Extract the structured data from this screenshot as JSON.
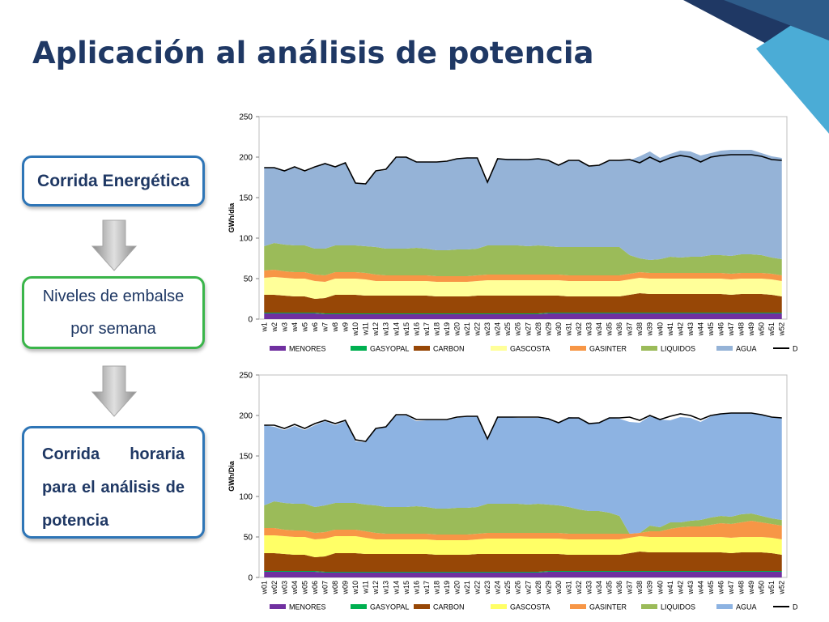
{
  "page": {
    "title": "Aplicación al análisis de potencia"
  },
  "flow": {
    "step1": "Corrida Energética",
    "step2": "Niveles de embalse por semana",
    "step3": "Corrida horaria para el análisis de potencia"
  },
  "colors": {
    "title": "#1f3864",
    "box_blue": "#2e75b6",
    "box_green": "#3ab54a",
    "arrow": "#a6a6a6",
    "corner_dark": "#1f3864",
    "corner_light": "#4bacd6"
  },
  "chart_data": [
    {
      "type": "area",
      "stacked": true,
      "ylabel": "GWh/dia",
      "ylim": [
        0,
        250
      ],
      "yticks": [
        0,
        50,
        100,
        150,
        200,
        250
      ],
      "grid": false,
      "legend_position": "bottom",
      "x": [
        "w1",
        "w2",
        "w3",
        "w4",
        "w5",
        "w6",
        "w7",
        "w8",
        "w9",
        "w10",
        "w11",
        "w12",
        "w13",
        "w14",
        "w15",
        "w16",
        "w17",
        "w18",
        "w19",
        "w20",
        "w21",
        "w22",
        "w23",
        "w24",
        "w25",
        "w26",
        "w27",
        "w28",
        "w29",
        "w30",
        "w31",
        "w32",
        "w33",
        "w34",
        "w35",
        "w36",
        "w37",
        "w38",
        "w39",
        "w40",
        "w41",
        "w42",
        "w43",
        "w44",
        "w45",
        "w46",
        "w47",
        "w48",
        "w49",
        "w50",
        "w51",
        "w52"
      ],
      "series": [
        {
          "name": "MENORES",
          "color": "#7030a0",
          "values": [
            7,
            7,
            7,
            7,
            7,
            7,
            6,
            6,
            6,
            6,
            6,
            6,
            6,
            6,
            6,
            6,
            6,
            6,
            6,
            6,
            6,
            6,
            6,
            6,
            6,
            6,
            6,
            6,
            7,
            7,
            7,
            7,
            7,
            7,
            7,
            7,
            7,
            7,
            7,
            7,
            7,
            7,
            7,
            7,
            7,
            7,
            7,
            7,
            7,
            7,
            7,
            7
          ]
        },
        {
          "name": "GASYOPAL",
          "color": "#00b050",
          "values": [
            1,
            1,
            1,
            1,
            1,
            1,
            1,
            1,
            1,
            1,
            1,
            1,
            1,
            1,
            1,
            1,
            1,
            1,
            1,
            1,
            1,
            1,
            1,
            1,
            1,
            1,
            1,
            1,
            1,
            1,
            1,
            1,
            1,
            1,
            1,
            1,
            1,
            1,
            1,
            1,
            1,
            1,
            1,
            1,
            1,
            1,
            1,
            1,
            1,
            1,
            1,
            1
          ]
        },
        {
          "name": "CARBON",
          "color": "#974706",
          "values": [
            22,
            22,
            21,
            20,
            20,
            17,
            19,
            23,
            23,
            23,
            22,
            22,
            22,
            22,
            22,
            22,
            22,
            21,
            21,
            21,
            21,
            22,
            22,
            22,
            22,
            22,
            22,
            22,
            21,
            21,
            20,
            20,
            20,
            20,
            20,
            20,
            22,
            24,
            23,
            23,
            23,
            23,
            23,
            23,
            23,
            23,
            22,
            23,
            23,
            23,
            22,
            20
          ]
        },
        {
          "name": "GASCOSTA",
          "color": "#ffff99",
          "values": [
            21,
            22,
            22,
            22,
            22,
            22,
            20,
            20,
            20,
            20,
            20,
            18,
            18,
            18,
            18,
            18,
            18,
            18,
            18,
            18,
            18,
            18,
            19,
            19,
            19,
            19,
            19,
            19,
            19,
            19,
            19,
            19,
            19,
            19,
            19,
            19,
            19,
            19,
            19,
            19,
            19,
            19,
            19,
            19,
            19,
            19,
            19,
            19,
            19,
            19,
            19,
            19
          ]
        },
        {
          "name": "GASINTER",
          "color": "#f79646",
          "values": [
            9,
            9,
            8,
            8,
            8,
            8,
            8,
            8,
            8,
            8,
            8,
            8,
            7,
            7,
            7,
            7,
            7,
            7,
            7,
            7,
            7,
            7,
            7,
            7,
            7,
            7,
            7,
            7,
            7,
            7,
            7,
            7,
            7,
            7,
            7,
            7,
            7,
            7,
            7,
            7,
            7,
            7,
            7,
            7,
            7,
            7,
            7,
            7,
            7,
            7,
            7,
            7
          ]
        },
        {
          "name": "LIQUIDOS",
          "color": "#9bbb59",
          "values": [
            30,
            33,
            33,
            33,
            33,
            32,
            33,
            33,
            33,
            33,
            33,
            34,
            33,
            33,
            33,
            34,
            33,
            32,
            32,
            33,
            33,
            33,
            36,
            36,
            36,
            36,
            35,
            36,
            35,
            34,
            35,
            35,
            35,
            35,
            35,
            35,
            23,
            17,
            16,
            17,
            20,
            19,
            20,
            20,
            22,
            22,
            22,
            23,
            23,
            22,
            20,
            20
          ]
        },
        {
          "name": "AGUA",
          "color": "#95b3d7",
          "values": [
            97,
            93,
            91,
            96,
            91,
            100,
            106,
            96,
            103,
            77,
            76,
            93,
            97,
            112,
            113,
            106,
            107,
            109,
            110,
            112,
            113,
            112,
            78,
            107,
            107,
            107,
            107,
            107,
            105,
            101,
            107,
            107,
            99,
            101,
            107,
            107,
            117,
            126,
            134,
            125,
            127,
            132,
            130,
            125,
            126,
            129,
            131,
            129,
            129,
            126,
            125,
            125
          ]
        },
        {
          "name": "DEMANDA",
          "color": "#000000",
          "kind": "line",
          "values": [
            187,
            187,
            183,
            188,
            183,
            188,
            192,
            188,
            193,
            168,
            167,
            183,
            185,
            200,
            200,
            194,
            194,
            194,
            195,
            198,
            199,
            199,
            169,
            198,
            197,
            197,
            197,
            198,
            196,
            190,
            196,
            196,
            189,
            190,
            196,
            196,
            197,
            193,
            200,
            194,
            199,
            202,
            200,
            194,
            200,
            202,
            203,
            203,
            203,
            201,
            197,
            196
          ]
        }
      ]
    },
    {
      "type": "area",
      "stacked": true,
      "ylabel": "GWh/Dia",
      "ylim": [
        0,
        250
      ],
      "yticks": [
        0,
        50,
        100,
        150,
        200,
        250
      ],
      "grid": false,
      "legend_position": "bottom",
      "x": [
        "w01",
        "w02",
        "w03",
        "w04",
        "w05",
        "w06",
        "w07",
        "w08",
        "w09",
        "w10",
        "w11",
        "w12",
        "w13",
        "w14",
        "w15",
        "w16",
        "w17",
        "w18",
        "w19",
        "w20",
        "w21",
        "w22",
        "w23",
        "w24",
        "w25",
        "w26",
        "w27",
        "w28",
        "w29",
        "w30",
        "w31",
        "w32",
        "w33",
        "w34",
        "w35",
        "w36",
        "w37",
        "w38",
        "w39",
        "w40",
        "w41",
        "w42",
        "w43",
        "w44",
        "w45",
        "w46",
        "w47",
        "w48",
        "w49",
        "w50",
        "w51",
        "w52"
      ],
      "series": [
        {
          "name": "MENORES",
          "color": "#7030a0",
          "values": [
            7,
            7,
            7,
            7,
            7,
            7,
            6,
            6,
            6,
            6,
            6,
            6,
            6,
            6,
            6,
            6,
            6,
            6,
            6,
            6,
            6,
            6,
            6,
            6,
            6,
            6,
            6,
            6,
            7,
            7,
            7,
            7,
            7,
            7,
            7,
            7,
            7,
            7,
            7,
            7,
            7,
            7,
            7,
            7,
            7,
            7,
            7,
            7,
            7,
            7,
            7,
            7
          ]
        },
        {
          "name": "GASYOPAL",
          "color": "#00b050",
          "values": [
            1,
            1,
            1,
            1,
            1,
            1,
            1,
            1,
            1,
            1,
            1,
            1,
            1,
            1,
            1,
            1,
            1,
            1,
            1,
            1,
            1,
            1,
            1,
            1,
            1,
            1,
            1,
            1,
            1,
            1,
            1,
            1,
            1,
            1,
            1,
            1,
            1,
            1,
            1,
            1,
            1,
            1,
            1,
            1,
            1,
            1,
            1,
            1,
            1,
            1,
            1,
            1
          ]
        },
        {
          "name": "CARBON",
          "color": "#974706",
          "values": [
            22,
            22,
            21,
            20,
            20,
            17,
            19,
            23,
            23,
            23,
            22,
            22,
            22,
            22,
            22,
            22,
            22,
            21,
            21,
            21,
            21,
            22,
            22,
            22,
            22,
            22,
            22,
            22,
            21,
            21,
            20,
            20,
            20,
            20,
            20,
            20,
            22,
            24,
            23,
            23,
            23,
            23,
            23,
            23,
            23,
            23,
            22,
            23,
            23,
            23,
            22,
            20
          ]
        },
        {
          "name": "GASCOSTA",
          "color": "#ffff66",
          "values": [
            22,
            22,
            22,
            22,
            22,
            22,
            22,
            21,
            21,
            21,
            20,
            18,
            18,
            18,
            18,
            18,
            18,
            18,
            18,
            18,
            18,
            18,
            19,
            19,
            19,
            19,
            19,
            19,
            19,
            19,
            19,
            19,
            19,
            19,
            19,
            19,
            19,
            19,
            19,
            19,
            19,
            19,
            19,
            19,
            19,
            19,
            19,
            19,
            19,
            19,
            19,
            19
          ]
        },
        {
          "name": "GASINTER",
          "color": "#f79646",
          "values": [
            9,
            9,
            8,
            8,
            8,
            8,
            8,
            8,
            8,
            8,
            8,
            8,
            7,
            7,
            7,
            7,
            7,
            7,
            7,
            7,
            7,
            7,
            7,
            7,
            7,
            7,
            7,
            7,
            7,
            7,
            7,
            7,
            7,
            7,
            7,
            7,
            5,
            4,
            7,
            7,
            10,
            12,
            13,
            13,
            15,
            17,
            17,
            18,
            20,
            18,
            17,
            17
          ]
        },
        {
          "name": "LIQUIDOS",
          "color": "#9bbb59",
          "values": [
            28,
            33,
            33,
            33,
            33,
            32,
            33,
            33,
            33,
            33,
            33,
            34,
            33,
            33,
            33,
            34,
            33,
            32,
            32,
            33,
            33,
            33,
            36,
            36,
            36,
            36,
            35,
            36,
            35,
            34,
            33,
            30,
            28,
            28,
            26,
            22,
            0,
            0,
            7,
            5,
            8,
            6,
            7,
            8,
            9,
            9,
            9,
            10,
            9,
            8,
            7,
            7
          ]
        },
        {
          "name": "AGUA",
          "color": "#8db3e2",
          "values": [
            99,
            92,
            90,
            96,
            91,
            101,
            104,
            96,
            101,
            76,
            77,
            94,
            99,
            113,
            113,
            105,
            107,
            109,
            109,
            111,
            113,
            112,
            78,
            107,
            107,
            106,
            107,
            106,
            106,
            102,
            111,
            113,
            108,
            109,
            117,
            120,
            138,
            136,
            135,
            133,
            126,
            130,
            127,
            121,
            125,
            126,
            128,
            125,
            124,
            125,
            125,
            126
          ]
        },
        {
          "name": "DEMANDA",
          "color": "#000000",
          "kind": "line",
          "values": [
            188,
            188,
            184,
            189,
            184,
            190,
            194,
            190,
            194,
            170,
            168,
            184,
            186,
            201,
            201,
            195,
            195,
            195,
            195,
            198,
            199,
            199,
            171,
            198,
            198,
            198,
            198,
            198,
            196,
            191,
            197,
            197,
            190,
            191,
            197,
            197,
            198,
            194,
            200,
            195,
            199,
            202,
            200,
            195,
            200,
            202,
            203,
            203,
            203,
            201,
            198,
            197
          ]
        }
      ]
    }
  ]
}
